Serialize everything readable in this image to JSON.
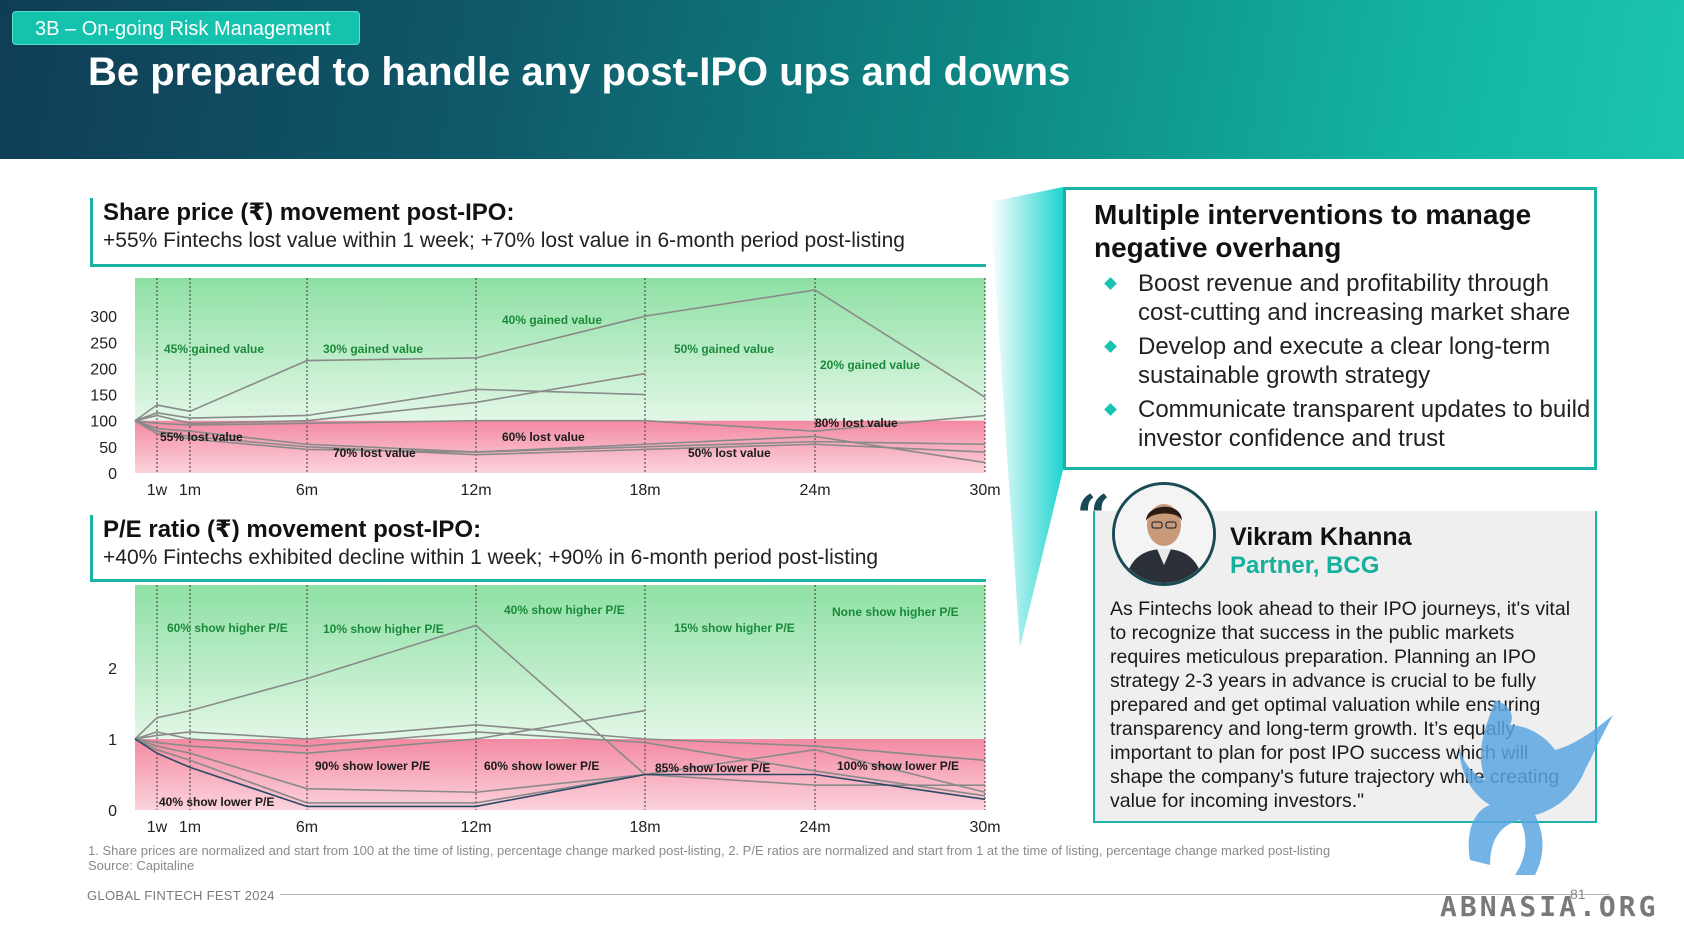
{
  "header": {
    "section_tag": "3B – On-going Risk Management",
    "title": "Be prepared to handle any post-IPO ups and downs"
  },
  "chart1_head": {
    "title": "Share price (₹) movement post-IPO:",
    "subtitle": "+55% Fintechs lost value within 1 week; +70% lost value in 6-month period post-listing"
  },
  "chart2_head": {
    "title": "P/E ratio (₹) movement post-IPO:",
    "subtitle": "+40% Fintechs exhibited decline within 1 week; +90% in 6-month period post-listing"
  },
  "chart_data": [
    {
      "type": "line",
      "x": [
        "0",
        "1w",
        "1m",
        "6m",
        "12m",
        "18m",
        "24m",
        "30m"
      ],
      "x_tick_labels": [
        "1w",
        "1m",
        "6m",
        "12m",
        "18m",
        "24m",
        "30m"
      ],
      "y_ticks": [
        "0",
        "50",
        "100",
        "150",
        "200",
        "250",
        "300"
      ],
      "ylim": [
        0,
        350
      ],
      "baseline": 100,
      "colors": {
        "gain_zone": "#a8e6b8",
        "loss_zone": "#f6a3b4",
        "line": "#8a8a8a"
      },
      "series": [
        {
          "values": [
            100,
            130,
            118,
            215,
            220,
            300,
            350,
            145
          ]
        },
        {
          "values": [
            100,
            115,
            105,
            110,
            160,
            150,
            null,
            null
          ]
        },
        {
          "values": [
            100,
            110,
            95,
            100,
            135,
            190,
            null,
            null
          ]
        },
        {
          "values": [
            100,
            95,
            92,
            95,
            100,
            100,
            80,
            110
          ]
        },
        {
          "values": [
            100,
            85,
            80,
            55,
            40,
            50,
            60,
            55
          ]
        },
        {
          "values": [
            100,
            80,
            70,
            50,
            35,
            45,
            55,
            40
          ]
        },
        {
          "values": [
            100,
            75,
            65,
            45,
            40,
            55,
            70,
            20
          ]
        }
      ],
      "annotations": [
        {
          "text": "45% gained value"
        },
        {
          "text": "30%  gained value"
        },
        {
          "text": "40% gained value"
        },
        {
          "text": "50% gained value"
        },
        {
          "text": "20% gained value"
        },
        {
          "text": "55% lost value"
        },
        {
          "text": "70% lost value"
        },
        {
          "text": "60% lost value"
        },
        {
          "text": "50% lost value"
        },
        {
          "text": "80% lost value"
        }
      ]
    },
    {
      "type": "line",
      "x": [
        "0",
        "1w",
        "1m",
        "6m",
        "12m",
        "18m",
        "24m",
        "30m"
      ],
      "x_tick_labels": [
        "1w",
        "1m",
        "6m",
        "12m",
        "18m",
        "24m",
        "30m"
      ],
      "y_ticks": [
        "0",
        "1",
        "2"
      ],
      "ylim": [
        0,
        3
      ],
      "baseline": 1,
      "colors": {
        "gain_zone": "#a8e6b8",
        "loss_zone": "#f6a3b4",
        "line": "#8a8a8a",
        "highlight": "#2c4a66"
      },
      "series": [
        {
          "values": [
            1,
            1.3,
            1.4,
            1.85,
            2.6,
            0.5,
            null,
            null
          ]
        },
        {
          "values": [
            1,
            1.05,
            1.1,
            1.0,
            1.2,
            1.0,
            0.9,
            0.7
          ]
        },
        {
          "values": [
            1,
            1.1,
            1.0,
            0.9,
            1.1,
            0.95,
            0.55,
            0.2
          ]
        },
        {
          "values": [
            1,
            0.95,
            0.9,
            0.8,
            1.0,
            1.4,
            null,
            null
          ]
        },
        {
          "values": [
            1,
            0.9,
            0.8,
            0.3,
            0.25,
            0.5,
            0.35,
            0.35
          ]
        },
        {
          "values": [
            1,
            0.85,
            0.7,
            0.1,
            0.1,
            0.5,
            0.85,
            0.25
          ]
        },
        {
          "values": [
            1,
            0.8,
            0.6,
            0.05,
            0.05,
            0.5,
            0.5,
            0.15
          ]
        }
      ],
      "annotations": [
        {
          "text": "60% show higher P/E"
        },
        {
          "text": "10% show higher P/E"
        },
        {
          "text": "40% show higher P/E"
        },
        {
          "text": "15% show higher P/E"
        },
        {
          "text": "None show higher P/E"
        },
        {
          "text": "40%  show lower P/E"
        },
        {
          "text": "90%  show lower P/E"
        },
        {
          "text": "60% show lower P/E"
        },
        {
          "text": "85% show lower P/E"
        },
        {
          "text": "100% show lower P/E"
        }
      ]
    }
  ],
  "interventions": {
    "title": "Multiple interventions to manage negative overhang",
    "items": [
      "Boost revenue and profitability through cost-cutting and increasing market share",
      "Develop and execute a clear long-term sustainable growth strategy",
      "Communicate transparent updates to build investor confidence and trust"
    ]
  },
  "quote": {
    "mark": "“",
    "name": "Vikram Khanna",
    "role": "Partner, BCG",
    "text": "As Fintechs look ahead to their IPO journeys, it's vital to recognize that success in the public markets requires meticulous preparation. Planning an IPO strategy 2-3 years in advance is crucial to be fully prepared and get optimal valuation while ensuring transparency and long-term growth. It’s equally important to plan for post IPO success which will shape the company's future trajectory while creating value for incoming investors.\""
  },
  "footnote": {
    "line1": "1. Share prices are normalized and start from 100 at the time of listing, percentage change marked post-listing, 2. P/E ratios are normalized and start from 1 at the time of listing, percentage change marked post-listing",
    "line2": "Source: Capitaline"
  },
  "footer": {
    "event": "GLOBAL FINTECH FEST 2024",
    "page": "81"
  },
  "watermark": {
    "text": "ABNASIA.ORG",
    "icon": "griffin-icon"
  }
}
